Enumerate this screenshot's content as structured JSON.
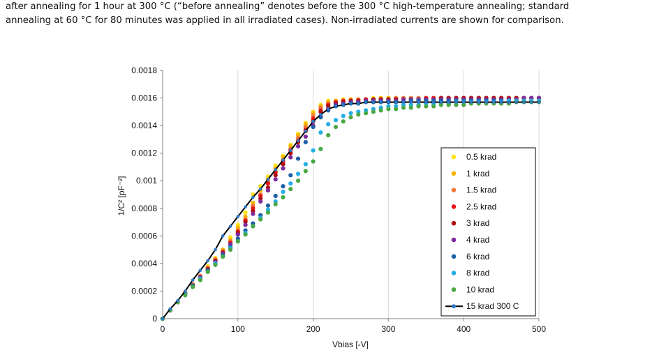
{
  "caption": {
    "line1": "after annealing for 1 hour at 300 °C (“before annealing” denotes before the 300 °C high-temperature annealing; standard",
    "line2": "annealing at 60 °C for 80 minutes was applied in all irradiated cases). Non-irradiated currents are shown for comparison."
  },
  "chart_data": {
    "type": "scatter",
    "title": "",
    "xlabel": "Vbias [-V]",
    "ylabel": "1/C² [pF⁻²]",
    "xlim": [
      0,
      500
    ],
    "ylim": [
      0,
      0.0018
    ],
    "x_ticks": [
      0,
      100,
      200,
      300,
      400,
      500
    ],
    "y_ticks": [
      0,
      0.0002,
      0.0004,
      0.0006,
      0.0008,
      0.001,
      0.0012,
      0.0014,
      0.0016,
      0.0018
    ],
    "x_tick_labels": [
      "0",
      "100",
      "200",
      "300",
      "400",
      "500"
    ],
    "y_tick_labels": [
      "0",
      "0.0002",
      "0.0004",
      "0.0006",
      "0.0008",
      "0.001",
      "0.0012",
      "0.0014",
      "0.0016",
      "0.0018"
    ],
    "grid": "vertical",
    "legend_position": "right",
    "x": [
      0,
      10,
      20,
      30,
      40,
      50,
      60,
      70,
      80,
      90,
      100,
      110,
      120,
      130,
      140,
      150,
      160,
      170,
      180,
      190,
      200,
      210,
      220,
      230,
      240,
      250,
      260,
      270,
      280,
      290,
      300,
      310,
      320,
      330,
      340,
      350,
      360,
      370,
      380,
      390,
      400,
      410,
      420,
      430,
      440,
      450,
      460,
      470,
      480,
      490,
      500
    ],
    "series": [
      {
        "name": "0.5 krad",
        "color": "#ffe21a",
        "marker": "dot",
        "values": [
          0,
          6e-05,
          0.00012,
          0.00019,
          0.00025,
          0.00031,
          0.00038,
          0.00044,
          0.0005,
          0.00059,
          0.00068,
          0.00077,
          0.0009,
          0.00096,
          0.00103,
          0.00111,
          0.00118,
          0.00126,
          0.00134,
          0.00142,
          0.0015,
          0.00155,
          0.00158,
          0.00158,
          0.00159,
          0.00159,
          0.00159,
          0.00159,
          0.0016,
          0.0016,
          0.0016,
          0.0016,
          0.0016,
          0.0016,
          0.0016,
          0.0016,
          0.0016,
          0.0016,
          0.0016,
          0.0016,
          0.0016,
          0.0016,
          0.0016,
          0.0016,
          0.0016,
          0.0016,
          0.0016,
          0.0016,
          0.0016,
          0.0016,
          0.0016
        ]
      },
      {
        "name": "1 krad",
        "color": "#f5b400",
        "marker": "dot",
        "values": [
          0,
          6e-05,
          0.00012,
          0.00019,
          0.00025,
          0.00031,
          0.00037,
          0.00043,
          0.0005,
          0.00057,
          0.00066,
          0.00074,
          0.00084,
          0.00093,
          0.00101,
          0.00109,
          0.00117,
          0.00125,
          0.00133,
          0.00141,
          0.00149,
          0.00154,
          0.00157,
          0.00158,
          0.00158,
          0.00159,
          0.00159,
          0.00159,
          0.00159,
          0.0016,
          0.0016,
          0.0016,
          0.0016,
          0.0016,
          0.0016,
          0.0016,
          0.0016,
          0.0016,
          0.0016,
          0.0016,
          0.0016,
          0.0016,
          0.0016,
          0.0016,
          0.0016,
          0.0016,
          0.0016,
          0.0016,
          0.0016,
          0.0016,
          0.0016
        ]
      },
      {
        "name": "1.5 krad",
        "color": "#ee7a3a",
        "marker": "dot",
        "values": [
          0,
          6e-05,
          0.00012,
          0.00019,
          0.00025,
          0.00031,
          0.00037,
          0.00043,
          0.00049,
          0.00056,
          0.00064,
          0.00072,
          0.00082,
          0.0009,
          0.00099,
          0.00107,
          0.00115,
          0.00123,
          0.00131,
          0.00139,
          0.00147,
          0.00153,
          0.00156,
          0.00157,
          0.00158,
          0.00158,
          0.00159,
          0.00159,
          0.00159,
          0.00159,
          0.00159,
          0.0016,
          0.0016,
          0.0016,
          0.0016,
          0.0016,
          0.0016,
          0.0016,
          0.0016,
          0.0016,
          0.0016,
          0.0016,
          0.0016,
          0.0016,
          0.0016,
          0.0016,
          0.0016,
          0.0016,
          0.0016,
          0.0016,
          0.0016
        ]
      },
      {
        "name": "2.5 krad",
        "color": "#e81919",
        "marker": "dot",
        "values": [
          0,
          6e-05,
          0.00012,
          0.00018,
          0.00024,
          0.0003,
          0.00036,
          0.00042,
          0.00048,
          0.00055,
          0.00063,
          0.00071,
          0.0008,
          0.00089,
          0.00098,
          0.00106,
          0.00114,
          0.00122,
          0.00129,
          0.00137,
          0.00145,
          0.00151,
          0.00155,
          0.00157,
          0.00158,
          0.00158,
          0.00158,
          0.00159,
          0.00159,
          0.00159,
          0.00159,
          0.00159,
          0.00159,
          0.00159,
          0.00159,
          0.0016,
          0.0016,
          0.0016,
          0.0016,
          0.0016,
          0.0016,
          0.0016,
          0.0016,
          0.0016,
          0.0016,
          0.0016,
          0.0016,
          0.0016,
          0.0016,
          0.0016,
          0.0016
        ]
      },
      {
        "name": "3 krad",
        "color": "#b01010",
        "marker": "dot",
        "values": [
          0,
          6e-05,
          0.00012,
          0.00018,
          0.00024,
          0.0003,
          0.00036,
          0.00042,
          0.00048,
          0.00054,
          0.00062,
          0.0007,
          0.00078,
          0.00087,
          0.00095,
          0.00104,
          0.00112,
          0.0012,
          0.00128,
          0.00136,
          0.00143,
          0.0015,
          0.00154,
          0.00156,
          0.00157,
          0.00158,
          0.00158,
          0.00158,
          0.00159,
          0.00159,
          0.00159,
          0.00159,
          0.00159,
          0.00159,
          0.00159,
          0.00159,
          0.00159,
          0.0016,
          0.0016,
          0.0016,
          0.0016,
          0.0016,
          0.0016,
          0.0016,
          0.0016,
          0.0016,
          0.0016,
          0.0016,
          0.0016,
          0.0016,
          0.0016
        ]
      },
      {
        "name": "4 krad",
        "color": "#7e2a9e",
        "marker": "dot",
        "values": [
          0,
          6e-05,
          0.00012,
          0.00018,
          0.00024,
          0.0003,
          0.00035,
          0.00041,
          0.00047,
          0.00054,
          0.00061,
          0.00068,
          0.00076,
          0.00085,
          0.00093,
          0.00101,
          0.00109,
          0.00117,
          0.00125,
          0.00132,
          0.0014,
          0.00147,
          0.00152,
          0.00155,
          0.00156,
          0.00157,
          0.00157,
          0.00158,
          0.00158,
          0.00158,
          0.00158,
          0.00158,
          0.00159,
          0.00159,
          0.00159,
          0.00159,
          0.00159,
          0.00159,
          0.00159,
          0.00159,
          0.00159,
          0.00159,
          0.00159,
          0.00159,
          0.00159,
          0.00159,
          0.00159,
          0.00159,
          0.0016,
          0.0016,
          0.0016
        ]
      },
      {
        "name": "6 krad",
        "color": "#1f5fa6",
        "marker": "dot",
        "values": [
          0,
          6e-05,
          0.00012,
          0.00018,
          0.00024,
          0.00029,
          0.00035,
          0.0004,
          0.00046,
          0.00052,
          0.00058,
          0.00064,
          0.00069,
          0.00075,
          0.00082,
          0.00089,
          0.00096,
          0.00104,
          0.00116,
          0.00128,
          0.00139,
          0.00146,
          0.00151,
          0.00154,
          0.00155,
          0.00156,
          0.00156,
          0.00157,
          0.00157,
          0.00157,
          0.00157,
          0.00157,
          0.00157,
          0.00158,
          0.00158,
          0.00158,
          0.00158,
          0.00158,
          0.00158,
          0.00158,
          0.00158,
          0.00158,
          0.00158,
          0.00158,
          0.00158,
          0.00158,
          0.00158,
          0.00158,
          0.00158,
          0.00158,
          0.00158
        ]
      },
      {
        "name": "8 krad",
        "color": "#25aee5",
        "marker": "dot",
        "values": [
          0,
          6e-05,
          0.00012,
          0.00018,
          0.00023,
          0.00029,
          0.00034,
          0.0004,
          0.00045,
          0.00051,
          0.00056,
          0.00062,
          0.00067,
          0.00073,
          0.00079,
          0.00085,
          0.00092,
          0.00098,
          0.00105,
          0.00112,
          0.00122,
          0.00135,
          0.00141,
          0.00144,
          0.00147,
          0.00149,
          0.0015,
          0.00151,
          0.00152,
          0.00153,
          0.00154,
          0.00154,
          0.00155,
          0.00155,
          0.00155,
          0.00156,
          0.00156,
          0.00156,
          0.00156,
          0.00157,
          0.00157,
          0.00157,
          0.00157,
          0.00157,
          0.00157,
          0.00157,
          0.00158,
          0.00158,
          0.00158,
          0.00158,
          0.00158
        ]
      },
      {
        "name": "10 krad",
        "color": "#4aa844",
        "marker": "dot",
        "values": [
          0,
          6e-05,
          0.00012,
          0.00017,
          0.00023,
          0.00028,
          0.00034,
          0.00039,
          0.00045,
          0.0005,
          0.00056,
          0.00061,
          0.00067,
          0.00072,
          0.00077,
          0.00083,
          0.00088,
          0.00094,
          0.001,
          0.00107,
          0.00114,
          0.00123,
          0.00133,
          0.00139,
          0.00143,
          0.00146,
          0.00148,
          0.00149,
          0.0015,
          0.00151,
          0.00152,
          0.00152,
          0.00153,
          0.00153,
          0.00154,
          0.00154,
          0.00154,
          0.00155,
          0.00155,
          0.00155,
          0.00155,
          0.00156,
          0.00156,
          0.00156,
          0.00156,
          0.00156,
          0.00156,
          0.00157,
          0.00157,
          0.00157,
          0.00157
        ]
      },
      {
        "name": "15 krad 300 C",
        "color": "#2f77c4",
        "line_color": "#000000",
        "marker": "line-dot",
        "values": [
          0,
          7e-05,
          0.00013,
          0.0002,
          0.00028,
          0.00035,
          0.00042,
          0.0005,
          0.0006,
          0.00067,
          0.00074,
          0.00081,
          0.00088,
          0.00094,
          0.00101,
          0.00108,
          0.00115,
          0.00122,
          0.00129,
          0.00136,
          0.00143,
          0.00148,
          0.00152,
          0.00154,
          0.00155,
          0.00156,
          0.00156,
          0.00157,
          0.00157,
          0.00157,
          0.00157,
          0.00157,
          0.00157,
          0.00157,
          0.00157,
          0.00157,
          0.00157,
          0.00157,
          0.00157,
          0.00157,
          0.00157,
          0.00157,
          0.00157,
          0.00157,
          0.00157,
          0.00157,
          0.00157,
          0.00157,
          0.00157,
          0.00157,
          0.00157
        ]
      }
    ]
  }
}
